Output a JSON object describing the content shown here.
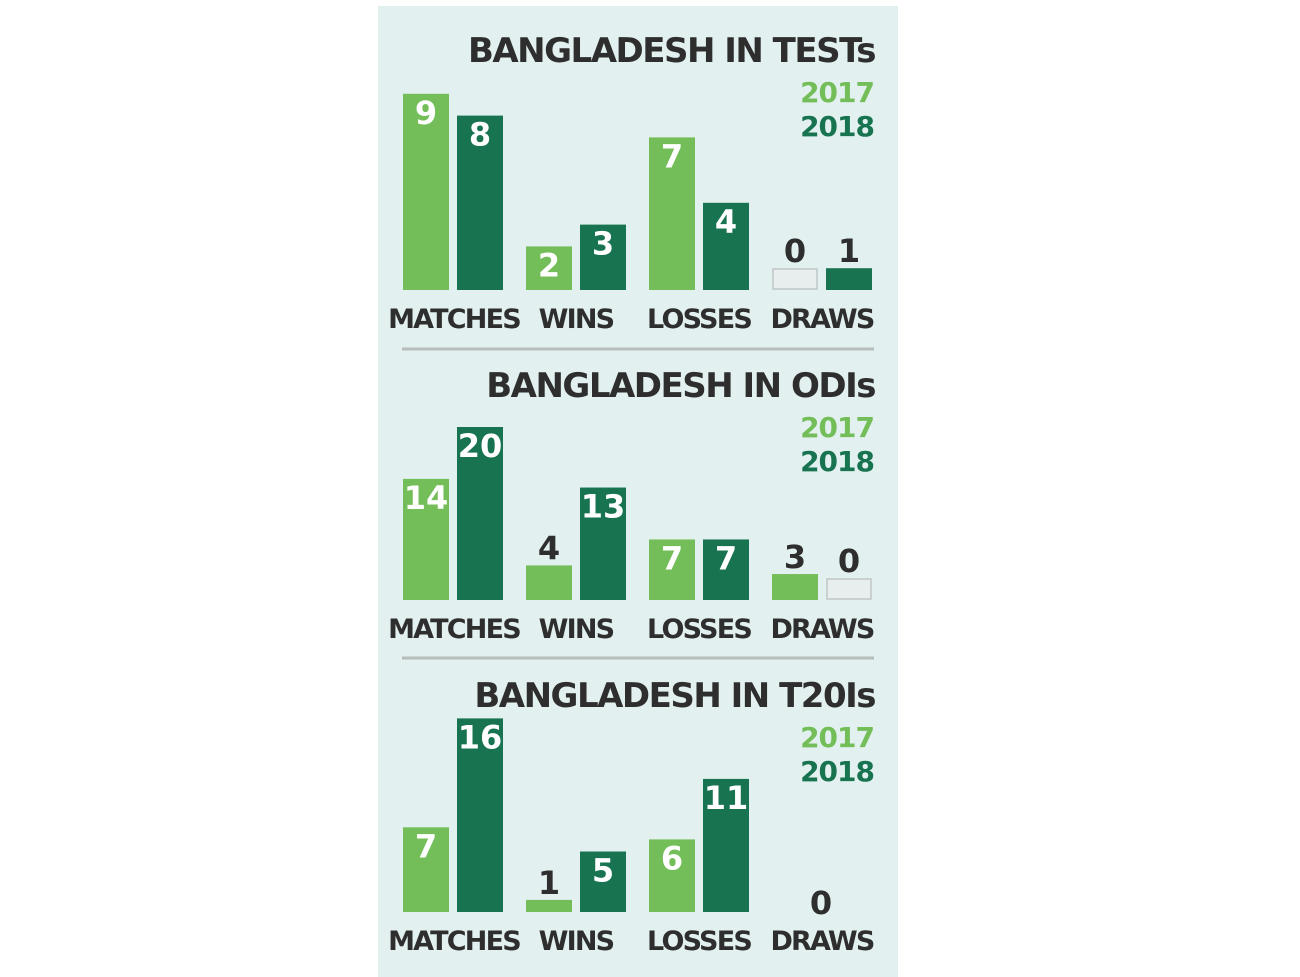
{
  "colors": {
    "background": "#e2f1ef",
    "series_2017": "#74be5a",
    "series_2018": "#177350",
    "text": "#2e2e2e",
    "value_on_bar": "#ffffff",
    "divider": "#b7bdbb",
    "empty_bar_fill": "#e8eeee",
    "empty_bar_stroke": "#bfc6c6"
  },
  "chart_data": [
    {
      "type": "bar",
      "title": "BANGLADESH IN TESTs",
      "categories": [
        "MATCHES",
        "WINS",
        "LOSSES",
        "DRAWS"
      ],
      "series": [
        {
          "name": "2017",
          "values": [
            9,
            2,
            7,
            0
          ]
        },
        {
          "name": "2018",
          "values": [
            8,
            3,
            4,
            1
          ]
        }
      ],
      "legend": "top-right",
      "grid": false
    },
    {
      "type": "bar",
      "title": "BANGLADESH IN ODIs",
      "categories": [
        "MATCHES",
        "WINS",
        "LOSSES",
        "DRAWS"
      ],
      "series": [
        {
          "name": "2017",
          "values": [
            14,
            4,
            7,
            3
          ]
        },
        {
          "name": "2018",
          "values": [
            20,
            13,
            7,
            0
          ]
        }
      ],
      "legend": "top-right",
      "grid": false
    },
    {
      "type": "bar",
      "title": "BANGLADESH IN T20Is",
      "categories": [
        "MATCHES",
        "WINS",
        "LOSSES",
        "DRAWS"
      ],
      "series": [
        {
          "name": "2017",
          "values": [
            7,
            1,
            6,
            null
          ]
        },
        {
          "name": "2018",
          "values": [
            16,
            5,
            11,
            null
          ]
        }
      ],
      "draws_label": "0",
      "legend": "top-right",
      "grid": false
    }
  ]
}
